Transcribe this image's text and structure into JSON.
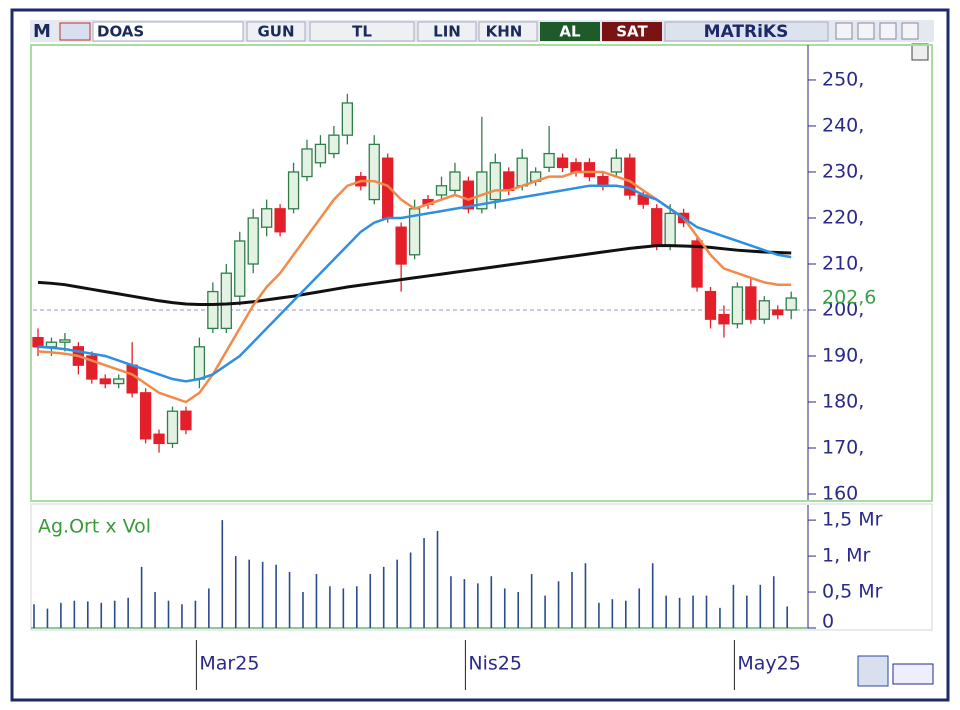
{
  "toolbar": {
    "logo": "M",
    "symbol": "DOAS",
    "buttons": [
      "GUN",
      "TL",
      "LIN",
      "KHN"
    ],
    "buy": "AL",
    "sell": "SAT",
    "brand": "MATRiKS"
  },
  "chart_data": [
    {
      "type": "candlestick",
      "categories": [
        null,
        null,
        null,
        null,
        null,
        null,
        null,
        null,
        null,
        null,
        null,
        null,
        "Mar25",
        null,
        null,
        null,
        null,
        null,
        null,
        null,
        null,
        null,
        null,
        null,
        null,
        null,
        null,
        null,
        null,
        null,
        null,
        null,
        "Nis25",
        null,
        null,
        null,
        null,
        null,
        null,
        null,
        null,
        null,
        null,
        null,
        null,
        null,
        null,
        null,
        null,
        null,
        null,
        null,
        "May25",
        null,
        null,
        null,
        null
      ],
      "open": [
        194,
        192,
        193,
        192,
        190,
        185,
        184,
        188,
        182,
        173,
        171,
        178,
        185,
        196,
        196,
        203,
        210,
        218,
        222,
        222,
        229,
        232,
        234,
        238,
        229,
        224,
        233,
        218,
        212,
        224,
        225,
        226,
        228,
        222,
        224,
        230,
        227,
        228,
        231,
        233,
        232,
        232,
        229,
        230,
        233,
        225,
        222,
        214,
        221,
        215,
        204,
        199,
        197,
        205,
        198,
        200,
        200
      ],
      "high": [
        196,
        194,
        195,
        193,
        191,
        186,
        186,
        193,
        183,
        174,
        179,
        179,
        194,
        206,
        210,
        217,
        222,
        224,
        223,
        232,
        237,
        238,
        240,
        247,
        230,
        238,
        234,
        219,
        224,
        225,
        229,
        232,
        229,
        242,
        234,
        231,
        235,
        231,
        240,
        234,
        233,
        233,
        230,
        235,
        234,
        226,
        223,
        223,
        222,
        216,
        205,
        201,
        206,
        207,
        203,
        201,
        204
      ],
      "low": [
        190,
        190,
        191,
        186,
        184,
        183,
        183,
        181,
        171,
        169,
        170,
        173,
        183,
        195,
        195,
        201,
        208,
        216,
        216,
        221,
        228,
        231,
        233,
        236,
        226,
        223,
        219,
        204,
        211,
        222,
        224,
        225,
        221,
        221,
        222,
        225,
        226,
        227,
        230,
        230,
        229,
        228,
        226,
        229,
        224,
        222,
        213,
        213,
        218,
        204,
        196,
        194,
        196,
        197,
        197,
        198,
        198
      ],
      "close": [
        192,
        193,
        193.5,
        188,
        185,
        184,
        185,
        182,
        172,
        171,
        178,
        174,
        192,
        204,
        208,
        215,
        220,
        222,
        217,
        230,
        235,
        236,
        238,
        245,
        227,
        236,
        220,
        210,
        222,
        223,
        227,
        230,
        222,
        230,
        232,
        226,
        233,
        230,
        234,
        231,
        230,
        229,
        227,
        233,
        225,
        223,
        214,
        221,
        219,
        205,
        198,
        197,
        205,
        198,
        202,
        199,
        202.6
      ],
      "up_color": "#2f7d4a",
      "down_color": "#e3202a",
      "series": [
        {
          "color": "#111111",
          "values": [
            206,
            205.8,
            205.5,
            205,
            204.5,
            204,
            203.5,
            203,
            202.5,
            202,
            201.6,
            201.3,
            201.2,
            201.2,
            201.3,
            201.5,
            201.8,
            202.2,
            202.6,
            203,
            203.5,
            204,
            204.5,
            205,
            205.4,
            205.8,
            206.2,
            206.6,
            207,
            207.4,
            207.8,
            208.2,
            208.6,
            209,
            209.4,
            209.8,
            210.2,
            210.6,
            211,
            211.4,
            211.8,
            212.2,
            212.6,
            213,
            213.4,
            213.7,
            214,
            214,
            213.9,
            213.8,
            213.6,
            213.3,
            213,
            212.8,
            212.6,
            212.5,
            212.4
          ]
        },
        {
          "color": "#f28a4a",
          "values": [
            191,
            190.8,
            190.5,
            190,
            189,
            188,
            187,
            186,
            184,
            182,
            181,
            180,
            182,
            186,
            191,
            196,
            201,
            205,
            208,
            212,
            216,
            220,
            224,
            227,
            228,
            228,
            227,
            224,
            222,
            223,
            224,
            225,
            224,
            225,
            226,
            226,
            227,
            228,
            229,
            229,
            230,
            230,
            230,
            229,
            228,
            226,
            224,
            222,
            220,
            216,
            212,
            209,
            208,
            207,
            206,
            205.5,
            205.5
          ]
        },
        {
          "color": "#2f8fe0",
          "values": [
            192,
            191.8,
            191.5,
            191,
            190.5,
            190,
            189,
            188,
            187,
            186,
            185,
            184.5,
            185,
            186,
            188,
            190,
            193,
            196,
            199,
            202,
            205,
            208,
            211,
            214,
            217,
            219,
            220,
            220,
            220.5,
            221,
            221.5,
            222,
            222.5,
            223,
            223.5,
            224,
            224.5,
            225,
            225.5,
            226,
            226.5,
            227,
            227,
            227,
            226.5,
            225,
            224,
            222,
            220,
            218,
            217,
            216,
            215,
            214,
            213,
            212,
            211.5
          ]
        }
      ],
      "last_label": "202,6",
      "last_label_color": "#3aa04a",
      "reference_line": 200,
      "ylim": [
        158.7,
        257.6
      ],
      "yticks": [
        {
          "value": 160,
          "label": "160"
        },
        {
          "value": 170,
          "label": "170,"
        },
        {
          "value": 180,
          "label": "180,"
        },
        {
          "value": 190,
          "label": "190,"
        },
        {
          "value": 200,
          "label": "200,"
        },
        {
          "value": 210,
          "label": "210,"
        },
        {
          "value": 220,
          "label": "220,"
        },
        {
          "value": 230,
          "label": "230,"
        },
        {
          "value": 240,
          "label": "240,"
        },
        {
          "value": 250,
          "label": "250,"
        }
      ]
    },
    {
      "type": "bar",
      "title": "Ag.Ort x Vol",
      "color": "#2a4a8a",
      "values": [
        0.33,
        0.27,
        0.35,
        0.38,
        0.37,
        0.35,
        0.38,
        0.42,
        0.85,
        0.5,
        0.38,
        0.33,
        0.38,
        0.55,
        1.5,
        1.0,
        0.95,
        0.92,
        0.88,
        0.78,
        0.5,
        0.75,
        0.58,
        0.55,
        0.58,
        0.75,
        0.85,
        0.95,
        1.05,
        1.25,
        1.35,
        0.72,
        0.68,
        0.62,
        0.72,
        0.55,
        0.5,
        0.75,
        0.45,
        0.65,
        0.78,
        0.9,
        0.35,
        0.4,
        0.38,
        0.55,
        0.9,
        0.45,
        0.42,
        0.45,
        0.45,
        0.28,
        0.6,
        0.45,
        0.6,
        0.72,
        0.3
      ],
      "ylim": [
        0,
        1.71
      ],
      "yticks": [
        {
          "value": 0,
          "label": "0"
        },
        {
          "value": 0.5,
          "label": "0,5 Mr"
        },
        {
          "value": 1,
          "label": "1, Mr"
        },
        {
          "value": 1.5,
          "label": "1,5 Mr"
        }
      ]
    }
  ]
}
